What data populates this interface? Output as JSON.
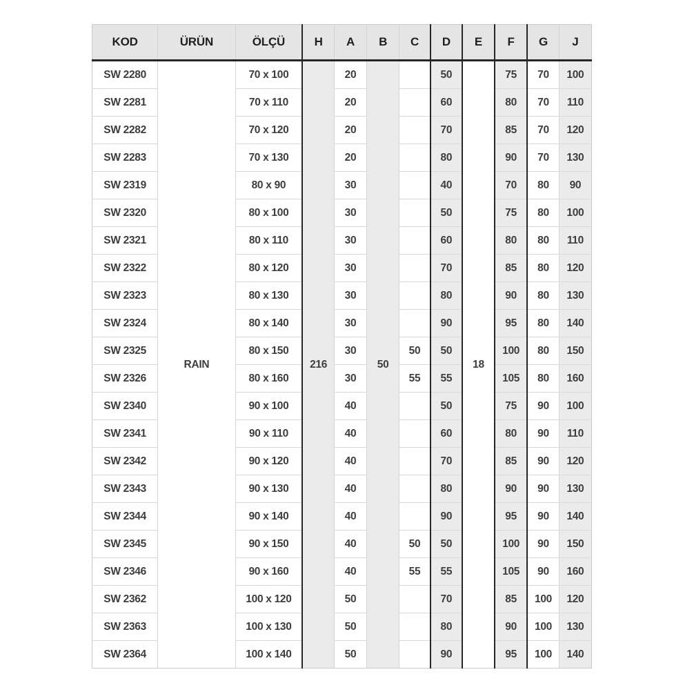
{
  "table": {
    "columns": [
      {
        "key": "kod",
        "label": "KOD"
      },
      {
        "key": "urun",
        "label": "ÜRÜN"
      },
      {
        "key": "olcu",
        "label": "ÖLÇÜ"
      },
      {
        "key": "h",
        "label": "H"
      },
      {
        "key": "a",
        "label": "A"
      },
      {
        "key": "b",
        "label": "B"
      },
      {
        "key": "c",
        "label": "C"
      },
      {
        "key": "d",
        "label": "D"
      },
      {
        "key": "e",
        "label": "E"
      },
      {
        "key": "f",
        "label": "F"
      },
      {
        "key": "g",
        "label": "G"
      },
      {
        "key": "j",
        "label": "J"
      }
    ],
    "merged_values": {
      "urun": "RAIN",
      "h": "216",
      "b": "50",
      "e": "18"
    },
    "rows": [
      {
        "kod": "SW 2280",
        "olcu": "70 x 100",
        "a": "20",
        "c": "",
        "d": "50",
        "f": "75",
        "g": "70",
        "j": "100"
      },
      {
        "kod": "SW 2281",
        "olcu": "70 x 110",
        "a": "20",
        "c": "",
        "d": "60",
        "f": "80",
        "g": "70",
        "j": "110"
      },
      {
        "kod": "SW 2282",
        "olcu": "70 x 120",
        "a": "20",
        "c": "",
        "d": "70",
        "f": "85",
        "g": "70",
        "j": "120"
      },
      {
        "kod": "SW 2283",
        "olcu": "70 x 130",
        "a": "20",
        "c": "",
        "d": "80",
        "f": "90",
        "g": "70",
        "j": "130"
      },
      {
        "kod": "SW 2319",
        "olcu": "80 x 90",
        "a": "30",
        "c": "",
        "d": "40",
        "f": "70",
        "g": "80",
        "j": "90"
      },
      {
        "kod": "SW 2320",
        "olcu": "80 x 100",
        "a": "30",
        "c": "",
        "d": "50",
        "f": "75",
        "g": "80",
        "j": "100"
      },
      {
        "kod": "SW 2321",
        "olcu": "80 x 110",
        "a": "30",
        "c": "",
        "d": "60",
        "f": "80",
        "g": "80",
        "j": "110"
      },
      {
        "kod": "SW 2322",
        "olcu": "80 x 120",
        "a": "30",
        "c": "",
        "d": "70",
        "f": "85",
        "g": "80",
        "j": "120"
      },
      {
        "kod": "SW 2323",
        "olcu": "80 x 130",
        "a": "30",
        "c": "",
        "d": "80",
        "f": "90",
        "g": "80",
        "j": "130"
      },
      {
        "kod": "SW 2324",
        "olcu": "80 x 140",
        "a": "30",
        "c": "",
        "d": "90",
        "f": "95",
        "g": "80",
        "j": "140"
      },
      {
        "kod": "SW 2325",
        "olcu": "80 x 150",
        "a": "30",
        "c": "50",
        "d": "50",
        "f": "100",
        "g": "80",
        "j": "150"
      },
      {
        "kod": "SW 2326",
        "olcu": "80 x 160",
        "a": "30",
        "c": "55",
        "d": "55",
        "f": "105",
        "g": "80",
        "j": "160"
      },
      {
        "kod": "SW 2340",
        "olcu": "90 x 100",
        "a": "40",
        "c": "",
        "d": "50",
        "f": "75",
        "g": "90",
        "j": "100"
      },
      {
        "kod": "SW 2341",
        "olcu": "90 x 110",
        "a": "40",
        "c": "",
        "d": "60",
        "f": "80",
        "g": "90",
        "j": "110"
      },
      {
        "kod": "SW 2342",
        "olcu": "90 x 120",
        "a": "40",
        "c": "",
        "d": "70",
        "f": "85",
        "g": "90",
        "j": "120"
      },
      {
        "kod": "SW 2343",
        "olcu": "90 x 130",
        "a": "40",
        "c": "",
        "d": "80",
        "f": "90",
        "g": "90",
        "j": "130"
      },
      {
        "kod": "SW 2344",
        "olcu": "90 x 140",
        "a": "40",
        "c": "",
        "d": "90",
        "f": "95",
        "g": "90",
        "j": "140"
      },
      {
        "kod": "SW 2345",
        "olcu": "90 x 150",
        "a": "40",
        "c": "50",
        "d": "50",
        "f": "100",
        "g": "90",
        "j": "150"
      },
      {
        "kod": "SW 2346",
        "olcu": "90 x 160",
        "a": "40",
        "c": "55",
        "d": "55",
        "f": "105",
        "g": "90",
        "j": "160"
      },
      {
        "kod": "SW 2362",
        "olcu": "100 x 120",
        "a": "50",
        "c": "",
        "d": "70",
        "f": "85",
        "g": "100",
        "j": "120"
      },
      {
        "kod": "SW 2363",
        "olcu": "100 x 130",
        "a": "50",
        "c": "",
        "d": "80",
        "f": "90",
        "g": "100",
        "j": "130"
      },
      {
        "kod": "SW 2364",
        "olcu": "100 x 140",
        "a": "50",
        "c": "",
        "d": "90",
        "f": "95",
        "g": "100",
        "j": "140"
      }
    ]
  },
  "colors": {
    "header_bg": "#e5e5e6",
    "shaded_column_bg": "#ebebec",
    "heavy_rule": "#262626",
    "light_rule": "#d8d8d8",
    "text": "#3d3d3d"
  }
}
